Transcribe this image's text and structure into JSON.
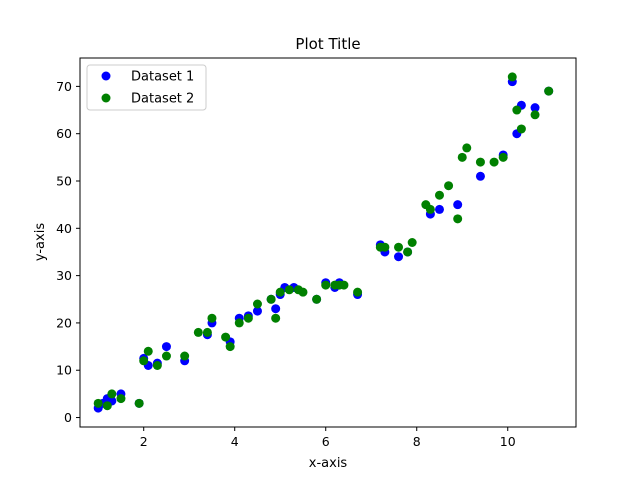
{
  "chart_data": {
    "type": "scatter",
    "title": "Plot Title",
    "xlabel": "x-axis",
    "ylabel": "y-axis",
    "xlim": [
      0.6,
      11.5
    ],
    "ylim": [
      -2,
      76
    ],
    "xticks": [
      2,
      4,
      6,
      8,
      10
    ],
    "yticks": [
      0,
      10,
      20,
      30,
      40,
      50,
      60,
      70
    ],
    "grid": false,
    "legend_position": "top-left",
    "series": [
      {
        "name": "Dataset 1",
        "color": "#0000ff",
        "points": [
          [
            1.0,
            2
          ],
          [
            1.1,
            3
          ],
          [
            1.2,
            4
          ],
          [
            1.3,
            3.5
          ],
          [
            1.5,
            5
          ],
          [
            1.9,
            3
          ],
          [
            2.0,
            12.5
          ],
          [
            2.1,
            11
          ],
          [
            2.3,
            11.5
          ],
          [
            2.5,
            15
          ],
          [
            2.9,
            12
          ],
          [
            3.4,
            17.5
          ],
          [
            3.5,
            20
          ],
          [
            3.9,
            16
          ],
          [
            4.1,
            21
          ],
          [
            4.3,
            21.5
          ],
          [
            4.5,
            22.5
          ],
          [
            4.8,
            25
          ],
          [
            4.9,
            23
          ],
          [
            5.0,
            26
          ],
          [
            5.1,
            27.5
          ],
          [
            5.3,
            27.5
          ],
          [
            5.8,
            25
          ],
          [
            6.0,
            28.5
          ],
          [
            6.2,
            27.5
          ],
          [
            6.3,
            28.5
          ],
          [
            6.7,
            26
          ],
          [
            7.2,
            36.5
          ],
          [
            7.3,
            35
          ],
          [
            7.6,
            34
          ],
          [
            7.8,
            35
          ],
          [
            8.3,
            43
          ],
          [
            8.5,
            44
          ],
          [
            8.9,
            45
          ],
          [
            9.4,
            51
          ],
          [
            9.9,
            55.5
          ],
          [
            10.1,
            71
          ],
          [
            10.2,
            60
          ],
          [
            10.3,
            66
          ],
          [
            10.6,
            65.5
          ],
          [
            10.9,
            69
          ]
        ]
      },
      {
        "name": "Dataset 2",
        "color": "#008000",
        "points": [
          [
            1.0,
            3
          ],
          [
            1.2,
            2.5
          ],
          [
            1.3,
            5
          ],
          [
            1.5,
            4
          ],
          [
            1.9,
            3
          ],
          [
            2.0,
            12
          ],
          [
            2.1,
            14
          ],
          [
            2.3,
            11
          ],
          [
            2.5,
            13
          ],
          [
            2.9,
            13
          ],
          [
            3.2,
            18
          ],
          [
            3.4,
            18
          ],
          [
            3.5,
            21
          ],
          [
            3.8,
            17
          ],
          [
            3.9,
            15
          ],
          [
            4.1,
            20
          ],
          [
            4.3,
            21
          ],
          [
            4.5,
            24
          ],
          [
            4.8,
            25
          ],
          [
            4.9,
            21
          ],
          [
            5.0,
            26.5
          ],
          [
            5.2,
            27
          ],
          [
            5.4,
            27
          ],
          [
            5.5,
            26.5
          ],
          [
            5.8,
            25
          ],
          [
            6.0,
            28
          ],
          [
            6.2,
            28
          ],
          [
            6.3,
            28
          ],
          [
            6.4,
            28
          ],
          [
            6.7,
            26.5
          ],
          [
            7.2,
            36
          ],
          [
            7.3,
            36
          ],
          [
            7.6,
            36
          ],
          [
            7.8,
            35
          ],
          [
            7.9,
            37
          ],
          [
            8.2,
            45
          ],
          [
            8.3,
            44
          ],
          [
            8.5,
            47
          ],
          [
            8.7,
            49
          ],
          [
            8.9,
            42
          ],
          [
            9.0,
            55
          ],
          [
            9.1,
            57
          ],
          [
            9.4,
            54
          ],
          [
            9.7,
            54
          ],
          [
            9.9,
            55
          ],
          [
            10.1,
            72
          ],
          [
            10.2,
            65
          ],
          [
            10.3,
            61
          ],
          [
            10.6,
            64
          ],
          [
            10.9,
            69
          ]
        ]
      }
    ]
  }
}
